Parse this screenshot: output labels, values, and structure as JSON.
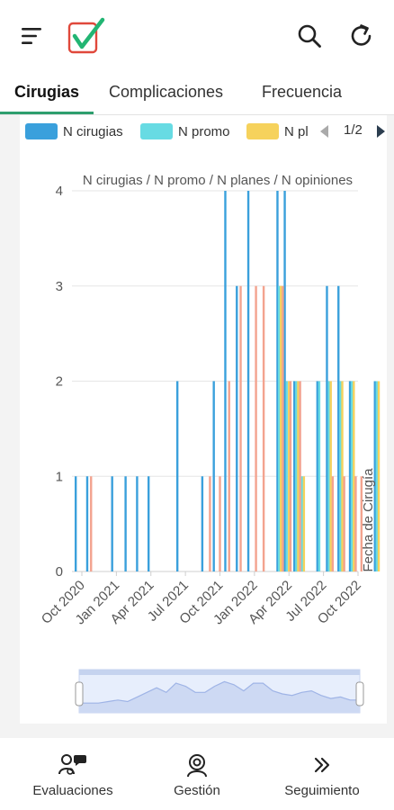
{
  "tabs": [
    {
      "label": "Cirugias",
      "active": true
    },
    {
      "label": "Complicaciones",
      "active": false
    },
    {
      "label": "Frecuencia",
      "active": false
    }
  ],
  "legend": {
    "items": [
      {
        "label": "N cirugias",
        "color": "#3aa0dc"
      },
      {
        "label": "N promo",
        "color": "#67dbe3"
      },
      {
        "label": "N pl",
        "color": "#f6d25c"
      }
    ],
    "page": "1/2"
  },
  "colors": {
    "accent": "#2e9e6e",
    "logo_check": "#22b573",
    "logo_box": "#e0483b"
  },
  "bottom_nav": [
    {
      "label": "Evaluaciones",
      "icon": "users-chat-icon"
    },
    {
      "label": "Gestión",
      "icon": "settings-user-icon"
    },
    {
      "label": "Seguimiento",
      "icon": "double-chevron-right-icon"
    }
  ],
  "chart_data": {
    "type": "bar",
    "title": "N cirugias / N promo / N planes / N opiniones",
    "xlabel": "Fecha de Cirugía",
    "ylim": [
      0,
      4
    ],
    "y_ticks": [
      "0",
      "1",
      "2",
      "3",
      "4"
    ],
    "x_tick_labels": [
      "Oct 2020",
      "Jan 2021",
      "Apr 2021",
      "Jul 2021",
      "Oct 2021",
      "Jan 2022",
      "Apr 2022",
      "Jul 2022",
      "Oct 2022"
    ],
    "series": [
      {
        "name": "N cirugias",
        "color": "#3aa0dc",
        "points": [
          [
            "2020-09-15",
            1
          ],
          [
            "2020-10-15",
            1
          ],
          [
            "2020-12-20",
            1
          ],
          [
            "2021-01-25",
            1
          ],
          [
            "2021-02-25",
            1
          ],
          [
            "2021-03-25",
            1
          ],
          [
            "2021-06-10",
            2
          ],
          [
            "2021-08-15",
            1
          ],
          [
            "2021-09-15",
            2
          ],
          [
            "2021-10-15",
            4
          ],
          [
            "2021-11-15",
            3
          ],
          [
            "2021-12-15",
            4
          ],
          [
            "2022-03-01",
            4
          ],
          [
            "2022-03-20",
            4
          ],
          [
            "2022-04-15",
            2
          ],
          [
            "2022-06-15",
            2
          ],
          [
            "2022-07-10",
            3
          ],
          [
            "2022-08-10",
            3
          ],
          [
            "2022-09-10",
            2
          ],
          [
            "2022-11-15",
            2
          ]
        ]
      },
      {
        "name": "N promo",
        "color": "#67dbe3",
        "points": [
          [
            "2022-03-05",
            3
          ],
          [
            "2022-03-25",
            2
          ],
          [
            "2022-04-20",
            2
          ],
          [
            "2022-05-05",
            1
          ],
          [
            "2022-06-20",
            2
          ],
          [
            "2022-07-15",
            2
          ],
          [
            "2022-08-15",
            2
          ],
          [
            "2022-09-15",
            2
          ],
          [
            "2022-11-20",
            2
          ]
        ]
      },
      {
        "name": "N pl",
        "color": "#f6d25c",
        "points": [
          [
            "2022-03-10",
            3
          ],
          [
            "2022-04-01",
            2
          ],
          [
            "2022-04-25",
            2
          ],
          [
            "2022-05-10",
            1
          ],
          [
            "2022-07-20",
            2
          ],
          [
            "2022-08-20",
            2
          ],
          [
            "2022-09-20",
            2
          ],
          [
            "2022-11-25",
            2
          ]
        ]
      },
      {
        "name": "N opiniones",
        "color": "#f3a38f",
        "points": [
          [
            "2020-10-25",
            1
          ],
          [
            "2021-09-05",
            1
          ],
          [
            "2021-10-01",
            1
          ],
          [
            "2021-10-25",
            2
          ],
          [
            "2021-11-25",
            3
          ],
          [
            "2022-01-05",
            3
          ],
          [
            "2022-01-25",
            3
          ],
          [
            "2022-03-15",
            3
          ],
          [
            "2022-04-05",
            2
          ],
          [
            "2022-04-30",
            2
          ],
          [
            "2022-07-25",
            1
          ],
          [
            "2022-08-25",
            1
          ],
          [
            "2022-09-25",
            1
          ],
          [
            "2022-10-10",
            1
          ]
        ]
      }
    ],
    "navigator": {
      "values": [
        0.2,
        0.2,
        0.2,
        0.25,
        0.3,
        0.25,
        0.4,
        0.55,
        0.7,
        0.55,
        0.85,
        0.75,
        0.55,
        0.55,
        0.75,
        0.9,
        0.8,
        0.6,
        0.85,
        0.85,
        0.6,
        0.5,
        0.45,
        0.55,
        0.6,
        0.45,
        0.35,
        0.4,
        0.3,
        0.3
      ]
    }
  }
}
